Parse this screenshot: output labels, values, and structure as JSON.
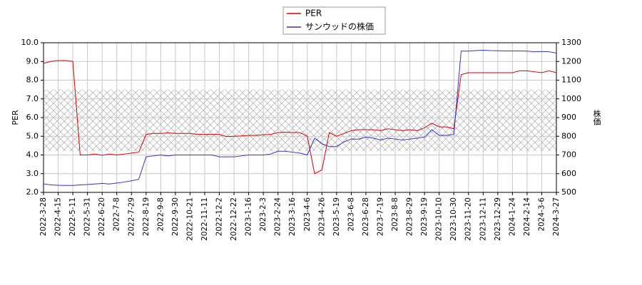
{
  "chart_data": {
    "type": "line",
    "categories": [
      "2022-3-28",
      null,
      "2022-4-15",
      null,
      "2022-5-11",
      null,
      "2022-5-31",
      null,
      "2022-6-20",
      null,
      "2022-7-8",
      null,
      "2022-7-29",
      null,
      "2022-8-19",
      null,
      "2022-9-8",
      null,
      "2022-9-30",
      null,
      "2022-10-21",
      null,
      "2022-11-11",
      null,
      "2022-12-2",
      null,
      "2022-12-22",
      null,
      "2023-1-16",
      null,
      "2023-2-3",
      null,
      "2023-2-24",
      null,
      "2023-3-16",
      null,
      "2023-4-6",
      null,
      "2023-4-26",
      null,
      "2023-5-19",
      null,
      "2023-6-8",
      null,
      "2023-6-28",
      null,
      "2023-7-19",
      null,
      "2023-8-8",
      null,
      "2023-8-29",
      null,
      "2023-9-19",
      null,
      "2023-10-10",
      null,
      "2023-10-30",
      null,
      "2023-11-20",
      null,
      "2023-12-11",
      null,
      "2023-12-29",
      null,
      "2024-1-24",
      null,
      "2024-2-14",
      null,
      "2024-3-6",
      null,
      "2024-3-27"
    ],
    "series": [
      {
        "name": "PER",
        "color": "#dd0000",
        "axis": "y",
        "values": [
          8.9,
          9.0,
          9.05,
          9.05,
          9.0,
          4.0,
          4.0,
          4.05,
          3.98,
          4.05,
          4.0,
          4.05,
          4.1,
          4.15,
          5.1,
          5.15,
          5.15,
          5.18,
          5.15,
          5.15,
          5.15,
          5.1,
          5.1,
          5.1,
          5.1,
          4.98,
          5.0,
          5.02,
          5.05,
          5.05,
          5.08,
          5.1,
          5.2,
          5.22,
          5.2,
          5.2,
          5.0,
          3.0,
          3.2,
          5.2,
          5.0,
          5.15,
          5.3,
          5.35,
          5.35,
          5.35,
          5.3,
          5.4,
          5.35,
          5.3,
          5.35,
          5.3,
          5.45,
          5.7,
          5.5,
          5.5,
          5.4,
          8.3,
          8.4,
          8.4,
          8.4,
          8.4,
          8.4,
          8.4,
          8.4,
          8.5,
          8.5,
          8.45,
          8.4,
          8.5,
          8.4
        ]
      },
      {
        "name": "サンウッドの株価",
        "color": "#3333cc",
        "axis": "y2",
        "values": [
          545,
          540,
          538,
          537,
          537,
          540,
          542,
          545,
          548,
          545,
          550,
          555,
          562,
          570,
          690,
          695,
          700,
          695,
          700,
          700,
          700,
          700,
          700,
          700,
          690,
          690,
          690,
          695,
          700,
          700,
          700,
          705,
          720,
          720,
          715,
          710,
          700,
          790,
          760,
          745,
          745,
          770,
          785,
          785,
          795,
          790,
          780,
          790,
          785,
          780,
          785,
          790,
          795,
          835,
          805,
          805,
          810,
          1255,
          1255,
          1258,
          1260,
          1258,
          1257,
          1256,
          1256,
          1256,
          1255,
          1252,
          1253,
          1252,
          1245
        ]
      }
    ],
    "y_label": "PER",
    "y2_label": "株価",
    "ylim": [
      2,
      10
    ],
    "yticks": [
      {
        "value": 2,
        "label": "2.0"
      },
      {
        "value": 3,
        "label": "3.0"
      },
      {
        "value": 4,
        "label": "4.0"
      },
      {
        "value": 5,
        "label": "5.0"
      },
      {
        "value": 6,
        "label": "6.0"
      },
      {
        "value": 7,
        "label": "7.0"
      },
      {
        "value": 8,
        "label": "8.0"
      },
      {
        "value": 9,
        "label": "9.0"
      },
      {
        "value": 10,
        "label": "10.0"
      }
    ],
    "y2lim": [
      500,
      1300
    ],
    "y2ticks": [
      500,
      600,
      700,
      800,
      900,
      1000,
      1100,
      1200,
      1300
    ],
    "shaded_range": [
      4.2,
      7.5
    ],
    "grid": true,
    "legend": "top"
  }
}
